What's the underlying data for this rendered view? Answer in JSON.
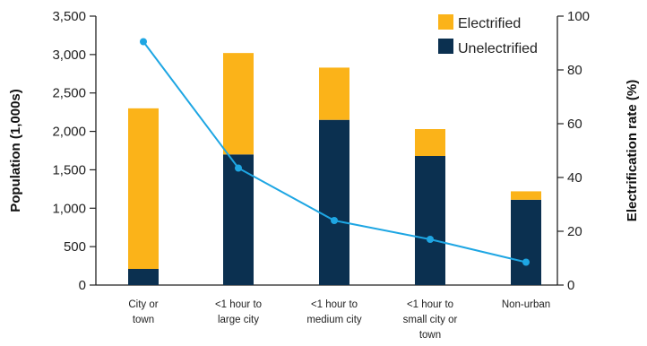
{
  "chart_data": {
    "type": "bar",
    "stacked": true,
    "categories": [
      [
        "City or",
        "town"
      ],
      [
        "<1 hour to",
        "large city"
      ],
      [
        "<1 hour to",
        "medium city"
      ],
      [
        "<1 hour to",
        "small city or",
        "town"
      ],
      [
        "Non-urban"
      ]
    ],
    "series": [
      {
        "name": "Unelectrified",
        "values": [
          210,
          1700,
          2150,
          1680,
          1110
        ],
        "color": "#0b3050"
      },
      {
        "name": "Electrified",
        "values": [
          2090,
          1320,
          680,
          350,
          110
        ],
        "color": "#fbb319"
      }
    ],
    "line_series": {
      "values": [
        90.5,
        43.5,
        24,
        17,
        8.5
      ],
      "color": "#1ea6e3",
      "axis": "right"
    },
    "ylabel": "Population (1,000s)",
    "ylim": [
      0,
      3500
    ],
    "yticks": [
      "0",
      "500",
      "1,000",
      "1,500",
      "2,000",
      "2,500",
      "3,000",
      "3,500"
    ],
    "ylabel_right": "Electrification rate (%)",
    "ylim_right": [
      0,
      100
    ],
    "yticks_right": [
      "0",
      "20",
      "40",
      "60",
      "80",
      "100"
    ],
    "legend": {
      "position": "top-right",
      "entries": [
        "Electrified",
        "Unelectrified"
      ]
    },
    "grid": false
  }
}
